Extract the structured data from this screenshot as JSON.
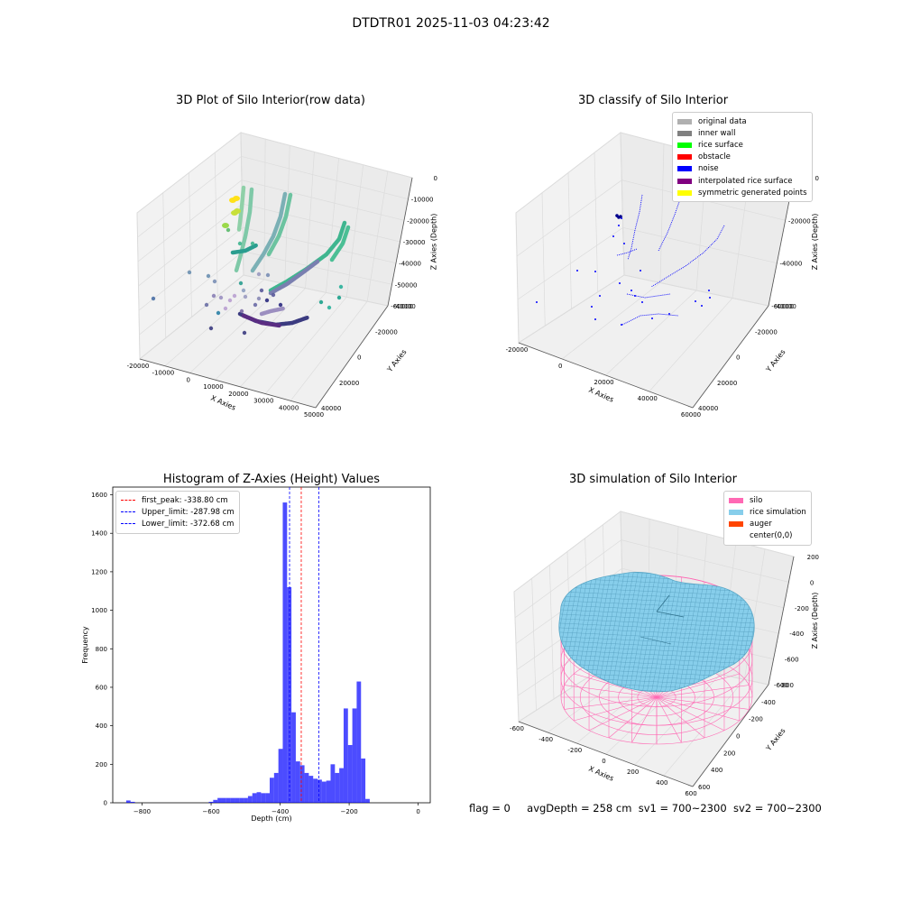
{
  "suptitle": "DTDTR01 2025-11-03 04:23:42",
  "panels": {
    "raw": {
      "title": "3D Plot of Silo Interior(row data)",
      "xlabel": "X Axies",
      "ylabel": "Y Axies",
      "zlabel": "Z Axies (Depth)",
      "xticks": [
        "-20000",
        "-10000",
        "0",
        "10000",
        "20000",
        "30000",
        "40000",
        "50000"
      ],
      "yticks": [
        "-40000",
        "-20000",
        "0",
        "20000",
        "40000"
      ],
      "zticks": [
        "0",
        "-10000",
        "-20000",
        "-30000",
        "-40000",
        "-50000",
        "-60000"
      ]
    },
    "classify": {
      "title": "3D classify of Silo Interior",
      "xlabel": "X Axies",
      "ylabel": "Y Axies",
      "zlabel": "Z Axies (Depth)",
      "xticks": [
        "-20000",
        "0",
        "20000",
        "40000",
        "60000"
      ],
      "yticks": [
        "-40000",
        "-20000",
        "0",
        "20000",
        "40000"
      ],
      "zticks": [
        "0",
        "-20000",
        "-40000",
        "-60000"
      ],
      "legend": [
        {
          "label": "original data",
          "color": "#b0b0b0"
        },
        {
          "label": "inner wall",
          "color": "#808080"
        },
        {
          "label": "rice surface",
          "color": "#00ff00"
        },
        {
          "label": "obstacle",
          "color": "#ff0000"
        },
        {
          "label": "noise",
          "color": "#0000ff"
        },
        {
          "label": "interpolated rice surface",
          "color": "#800080"
        },
        {
          "label": "symmetric generated points",
          "color": "#ffff00"
        }
      ]
    },
    "simulation": {
      "title": "3D simulation of Silo Interior",
      "xlabel": "X Axies",
      "ylabel": "Y Axies",
      "zlabel": "Z Axies (Depth)",
      "xticks": [
        "-600",
        "-400",
        "-200",
        "0",
        "200",
        "400",
        "600"
      ],
      "yticks": [
        "-600",
        "-400",
        "-200",
        "0",
        "200",
        "400",
        "600"
      ],
      "zticks": [
        "200",
        "0",
        "-200",
        "-400",
        "-600",
        "-800"
      ],
      "legend": [
        {
          "label": "silo",
          "color": "#ff69b4"
        },
        {
          "label": "rice simulation",
          "color": "#87ceeb"
        },
        {
          "label": "auger",
          "color": "#ff4500"
        },
        {
          "label": "center(0,0)",
          "color": ""
        }
      ]
    }
  },
  "chart_data": [
    {
      "type": "bar",
      "title": "Histogram of Z-Axies (Height) Values",
      "xlabel": "Depth (cm)",
      "ylabel": "Frequency",
      "xlim": [
        -885,
        35
      ],
      "ylim": [
        0,
        1640
      ],
      "xticks": [
        -800,
        -600,
        -400,
        -200,
        0
      ],
      "yticks": [
        0,
        200,
        400,
        600,
        800,
        1000,
        1200,
        1400,
        1600
      ],
      "bar_color": "#0000ff",
      "bin_width": 12.6,
      "bin_edges_start": -846,
      "values": [
        12,
        5,
        0,
        0,
        0,
        0,
        0,
        0,
        0,
        0,
        0,
        0,
        0,
        0,
        0,
        0,
        0,
        0,
        0,
        5,
        15,
        25,
        25,
        25,
        25,
        25,
        25,
        25,
        35,
        50,
        55,
        50,
        50,
        130,
        155,
        280,
        1560,
        1120,
        470,
        215,
        195,
        155,
        140,
        125,
        120,
        110,
        115,
        200,
        155,
        180,
        490,
        300,
        490,
        630,
        230,
        20
      ],
      "vlines": [
        {
          "label": "first_peak: -338.80 cm",
          "x": -338.8,
          "color": "#ff0000"
        },
        {
          "label": "Upper_limit: -287.98 cm",
          "x": -287.98,
          "color": "#0000ff"
        },
        {
          "label": "Lower_limit: -372.68 cm",
          "x": -372.68,
          "color": "#0000ff"
        }
      ]
    }
  ],
  "footer": {
    "flag": "flag = 0",
    "avg": "avgDepth = 258 cm",
    "sv1": "sv1 = 700~2300",
    "sv2": "sv2 = 700~2300"
  }
}
